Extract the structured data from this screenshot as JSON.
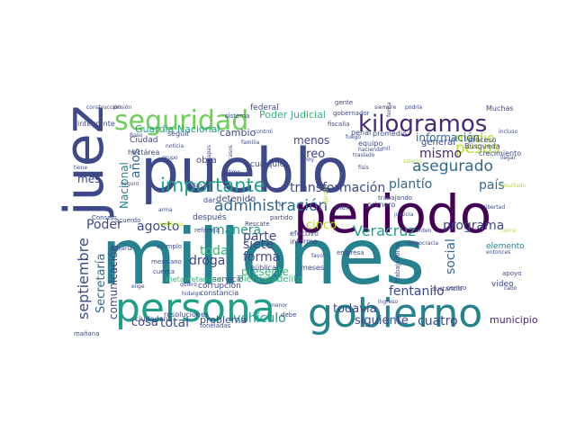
{
  "palette": {
    "dark_purple": "#440154",
    "purple": "#482878",
    "indigo": "#3e4989",
    "blue": "#31688e",
    "steel_blue": "#26828e",
    "teal": "#1f9e89",
    "green": "#35b779",
    "lime": "#6ece58",
    "yellow_green": "#b5de2b",
    "yellow": "#fde725",
    "background": "#ffffff"
  },
  "words": [
    {
      "text": "millones",
      "color": "steel_blue"
    },
    {
      "text": "pueblo",
      "color": "indigo"
    },
    {
      "text": "periodo",
      "color": "dark_purple"
    },
    {
      "text": "persona",
      "color": "teal"
    },
    {
      "text": "juez",
      "color": "indigo"
    },
    {
      "text": "gobierno",
      "color": "steel_blue"
    },
    {
      "text": "seguridad",
      "color": "lime"
    },
    {
      "text": "kilogramos",
      "color": "purple"
    },
    {
      "text": "administración",
      "color": "blue"
    },
    {
      "text": "importante",
      "color": "teal"
    },
    {
      "text": "asegurado",
      "color": "blue"
    },
    {
      "text": "Veracruz",
      "color": "teal"
    },
    {
      "text": "pesos",
      "color": "yellow_green"
    },
    {
      "text": "medio",
      "color": "yellow_green"
    },
    {
      "text": "país",
      "color": "blue"
    },
    {
      "text": "mismo",
      "color": "purple"
    },
    {
      "text": "plantío",
      "color": "blue"
    },
    {
      "text": "transformación",
      "color": "indigo"
    },
    {
      "text": "programa",
      "color": "indigo"
    },
    {
      "text": "septiembre",
      "color": "indigo"
    },
    {
      "text": "Secretaría",
      "color": "blue"
    },
    {
      "text": "comunicación",
      "color": "indigo"
    },
    {
      "text": "Nacional",
      "color": "steel_blue"
    },
    {
      "text": "años",
      "color": "blue"
    },
    {
      "text": "Poder",
      "color": "indigo"
    },
    {
      "text": "manera",
      "color": "teal"
    },
    {
      "text": "agosto",
      "color": "indigo"
    },
    {
      "text": "toda",
      "color": "green"
    },
    {
      "text": "parte",
      "color": "indigo"
    },
    {
      "text": "siete",
      "color": "indigo"
    },
    {
      "text": "forma",
      "color": "indigo"
    },
    {
      "text": "cinco",
      "color": "yellow_green"
    },
    {
      "text": "creo",
      "color": "indigo"
    },
    {
      "text": "menos",
      "color": "indigo"
    },
    {
      "text": "información",
      "color": "blue"
    },
    {
      "text": "general",
      "color": "indigo"
    },
    {
      "text": "vehículo",
      "color": "teal"
    },
    {
      "text": "todavía",
      "color": "indigo"
    },
    {
      "text": "fentanilo",
      "color": "indigo"
    },
    {
      "text": "siguiente",
      "color": "indigo"
    },
    {
      "text": "cuatro",
      "color": "indigo"
    },
    {
      "text": "social",
      "color": "blue"
    },
    {
      "text": "municipio",
      "color": "purple"
    },
    {
      "text": "total",
      "color": "indigo"
    },
    {
      "text": "droga",
      "color": "indigo"
    },
    {
      "text": "cosa",
      "color": "indigo"
    },
    {
      "text": "problema",
      "color": "indigo"
    },
    {
      "text": "presente",
      "color": "green"
    },
    {
      "text": "Guardia Nacional",
      "color": "teal"
    },
    {
      "text": "Poder Judicial",
      "color": "green"
    },
    {
      "text": "cambio",
      "color": "indigo"
    },
    {
      "text": "obra",
      "color": "indigo"
    },
    {
      "text": "mes",
      "color": "indigo"
    },
    {
      "text": "detenido",
      "color": "indigo"
    },
    {
      "text": "después",
      "color": "indigo"
    },
    {
      "text": "Ciudad",
      "color": "indigo"
    },
    {
      "text": "federal",
      "color": "indigo"
    },
    {
      "text": "seguir",
      "color": "indigo"
    },
    {
      "text": "hectárea",
      "color": "indigo"
    },
    {
      "text": "dar",
      "color": "indigo"
    },
    {
      "text": "cualquier",
      "color": "indigo"
    },
    {
      "text": "efectivo",
      "color": "indigo"
    },
    {
      "text": "informe",
      "color": "indigo"
    },
    {
      "text": "pública",
      "color": "indigo"
    },
    {
      "text": "servicio",
      "color": "indigo"
    },
    {
      "text": "Bienestar",
      "color": "green"
    },
    {
      "text": "delito",
      "color": "green"
    },
    {
      "text": "metanfetamina",
      "color": "green"
    },
    {
      "text": "corrupción",
      "color": "indigo"
    },
    {
      "text": "constancia",
      "color": "indigo"
    },
    {
      "text": "resoluciones",
      "color": "indigo"
    },
    {
      "text": "ciudadano",
      "color": "indigo"
    },
    {
      "text": "toneladas",
      "color": "indigo"
    },
    {
      "text": "debe",
      "color": "indigo"
    },
    {
      "text": "mañana",
      "color": "indigo"
    },
    {
      "text": "meses",
      "color": "indigo"
    },
    {
      "text": "empresa",
      "color": "indigo"
    },
    {
      "text": "elemento",
      "color": "steel_blue"
    },
    {
      "text": "video",
      "color": "indigo"
    },
    {
      "text": "apoyo",
      "color": "indigo"
    },
    {
      "text": "centro",
      "color": "indigo"
    },
    {
      "text": "cabo",
      "color": "indigo"
    },
    {
      "text": "sustancia",
      "color": "indigo"
    },
    {
      "text": "trabajadores",
      "color": "indigo"
    },
    {
      "text": "proceso",
      "color": "indigo"
    },
    {
      "text": "crecimiento",
      "color": "indigo"
    },
    {
      "text": "Búsqueda",
      "color": "indigo"
    },
    {
      "text": "primero",
      "color": "indigo"
    },
    {
      "text": "bien",
      "color": "indigo"
    },
    {
      "text": "equipo",
      "color": "indigo"
    },
    {
      "text": "promedio",
      "color": "indigo"
    },
    {
      "text": "penal",
      "color": "indigo"
    },
    {
      "text": "fiscalía",
      "color": "indigo"
    },
    {
      "text": "gobernador",
      "color": "indigo"
    },
    {
      "text": "gente",
      "color": "indigo"
    },
    {
      "text": "Muchas",
      "color": "indigo"
    },
    {
      "text": "reforma",
      "color": "indigo"
    },
    {
      "text": "partido",
      "color": "indigo"
    },
    {
      "text": "Rescate",
      "color": "indigo"
    },
    {
      "text": "ejemplo",
      "color": "indigo"
    },
    {
      "text": "mexicano",
      "color": "indigo"
    },
    {
      "text": "cuenta",
      "color": "indigo"
    },
    {
      "text": "acuerdo",
      "color": "indigo"
    },
    {
      "text": "Consejo",
      "color": "indigo"
    },
    {
      "text": "integrante",
      "color": "indigo"
    },
    {
      "text": "sistema",
      "color": "indigo"
    },
    {
      "text": "favor",
      "color": "indigo"
    },
    {
      "text": "hoy",
      "color": "indigo"
    },
    {
      "text": "libertad",
      "color": "indigo"
    },
    {
      "text": "justicia",
      "color": "indigo"
    },
    {
      "text": "trabajando",
      "color": "indigo"
    },
    {
      "text": "orden",
      "color": "indigo"
    },
    {
      "text": "mil",
      "color": "indigo"
    },
    {
      "text": "siempre",
      "color": "indigo"
    },
    {
      "text": "fecha",
      "color": "indigo"
    },
    {
      "text": "grupo",
      "color": "indigo"
    },
    {
      "text": "Plan",
      "color": "indigo"
    },
    {
      "text": "casos",
      "color": "indigo"
    },
    {
      "text": "arma",
      "color": "indigo"
    },
    {
      "text": "hidalgo",
      "color": "indigo"
    },
    {
      "text": "quiero",
      "color": "indigo"
    },
    {
      "text": "elige",
      "color": "indigo"
    },
    {
      "text": "ingreso",
      "color": "indigo"
    },
    {
      "text": "democracia",
      "color": "indigo"
    },
    {
      "text": "construcción",
      "color": "indigo"
    },
    {
      "text": "prisión",
      "color": "indigo"
    },
    {
      "text": "Baso",
      "color": "indigo"
    },
    {
      "text": "control",
      "color": "indigo"
    },
    {
      "text": "incluso",
      "color": "indigo"
    },
    {
      "text": "llegar",
      "color": "indigo"
    },
    {
      "text": "fuego",
      "color": "indigo"
    },
    {
      "text": "salario",
      "color": "yellow_green"
    },
    {
      "text": "haciendo",
      "color": "indigo"
    },
    {
      "text": "traslado",
      "color": "indigo"
    },
    {
      "text": "tiene",
      "color": "indigo"
    },
    {
      "text": "último",
      "color": "indigo"
    },
    {
      "text": "resultado",
      "color": "yellow_green"
    },
    {
      "text": "ejército",
      "color": "yellow_green"
    },
    {
      "text": "físis",
      "color": "indigo"
    },
    {
      "text": "familia",
      "color": "indigo"
    },
    {
      "text": "medicina",
      "color": "yellow_green"
    },
    {
      "text": "seguro",
      "color": "indigo"
    },
    {
      "text": "noticia",
      "color": "indigo"
    },
    {
      "text": "Chiapas",
      "color": "indigo"
    },
    {
      "text": "minería",
      "color": "indigo"
    },
    {
      "text": "menor",
      "color": "indigo"
    },
    {
      "text": "N",
      "color": "indigo"
    },
    {
      "text": "podría",
      "color": "indigo"
    },
    {
      "text": "cierre",
      "color": "yellow_green"
    },
    {
      "text": "entonces",
      "color": "indigo"
    },
    {
      "text": "acceso",
      "color": "yellow_green"
    },
    {
      "text": "proyecto",
      "color": "yellow_green"
    }
  ]
}
